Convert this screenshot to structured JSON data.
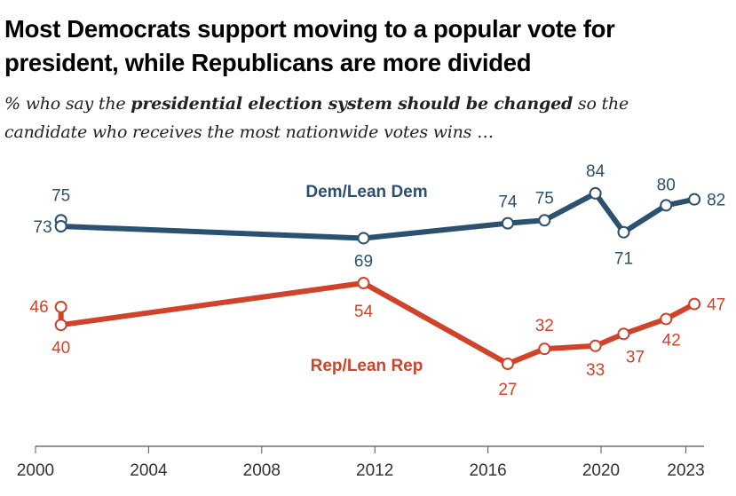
{
  "title_line1": "Most Democrats support moving to a popular vote for",
  "title_line2": "president, while Republicans are more divided",
  "subtitle": {
    "pre": "% who say the ",
    "bold": "presidential election system should be changed",
    "post": " so the",
    "line2": "candidate who receives the most nationwide votes wins …"
  },
  "chart_data": {
    "type": "line",
    "title": "Most Democrats support moving to a popular vote for president, while Republicans are more divided",
    "xlabel": "",
    "ylabel": "",
    "x_ticks": [
      2000,
      2004,
      2008,
      2012,
      2016,
      2020,
      2023
    ],
    "xlim": [
      2000,
      2023.7
    ],
    "ylim": [
      0,
      100
    ],
    "grid": false,
    "legend": "inline labels",
    "series": [
      {
        "name": "Dem/Lean Dem",
        "color": "#2c5070",
        "points": [
          {
            "x": 2000.9,
            "y": 75
          },
          {
            "x": 2000.9,
            "y": 73
          },
          {
            "x": 2011.6,
            "y": 69
          },
          {
            "x": 2016.7,
            "y": 74
          },
          {
            "x": 2018.0,
            "y": 75
          },
          {
            "x": 2019.8,
            "y": 84
          },
          {
            "x": 2020.8,
            "y": 71
          },
          {
            "x": 2022.3,
            "y": 80
          },
          {
            "x": 2023.3,
            "y": 82
          }
        ]
      },
      {
        "name": "Rep/Lean Rep",
        "color": "#d0432a",
        "points": [
          {
            "x": 2000.9,
            "y": 46
          },
          {
            "x": 2000.9,
            "y": 40
          },
          {
            "x": 2011.6,
            "y": 54
          },
          {
            "x": 2016.7,
            "y": 27
          },
          {
            "x": 2018.0,
            "y": 32
          },
          {
            "x": 2019.8,
            "y": 33
          },
          {
            "x": 2020.8,
            "y": 37
          },
          {
            "x": 2022.3,
            "y": 42
          },
          {
            "x": 2023.3,
            "y": 47
          }
        ]
      }
    ]
  }
}
